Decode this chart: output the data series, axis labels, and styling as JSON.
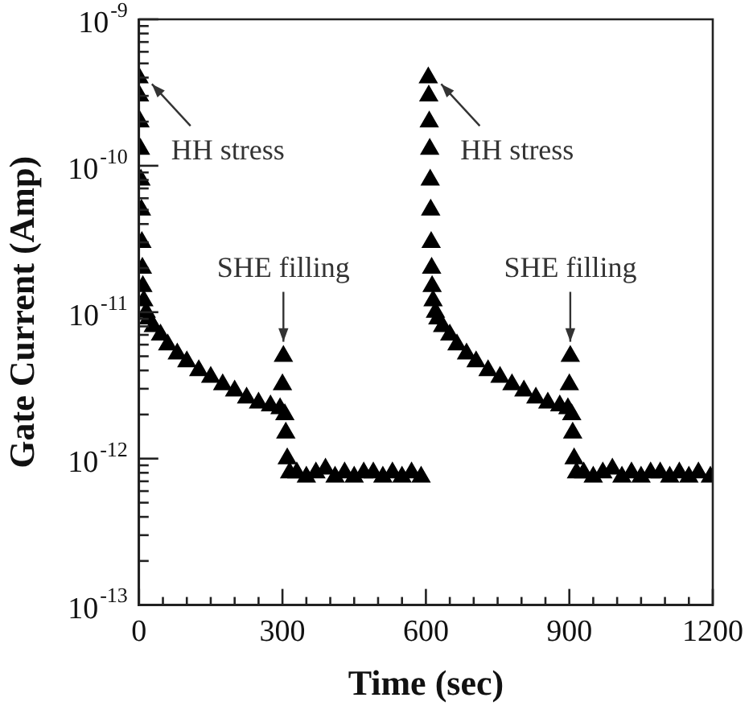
{
  "chart_data": {
    "type": "scatter",
    "xlabel": "Time (sec)",
    "ylabel": "Gate Current (Amp)",
    "log": "y",
    "grid": false,
    "legend": false,
    "marker": "triangle",
    "xlim": [
      0,
      1200
    ],
    "xticks": [
      0,
      {
        "value": 50,
        "label": null
      },
      {
        "value": 100,
        "label": null
      },
      {
        "value": 150,
        "label": null
      },
      {
        "value": 200,
        "label": null
      },
      {
        "value": 250,
        "label": null
      },
      300,
      {
        "value": 350,
        "label": null
      },
      {
        "value": 400,
        "label": null
      },
      {
        "value": 450,
        "label": null
      },
      {
        "value": 500,
        "label": null
      },
      {
        "value": 550,
        "label": null
      },
      600,
      {
        "value": 650,
        "label": null
      },
      {
        "value": 700,
        "label": null
      },
      {
        "value": 750,
        "label": null
      },
      {
        "value": 800,
        "label": null
      },
      {
        "value": 850,
        "label": null
      },
      900,
      {
        "value": 950,
        "label": null
      },
      {
        "value": 1000,
        "label": null
      },
      {
        "value": 1050,
        "label": null
      },
      {
        "value": 1100,
        "label": null
      },
      {
        "value": 1150,
        "label": null
      },
      1200
    ],
    "ylim": [
      1e-13,
      1e-09
    ],
    "yticks": [
      {
        "value": 1e-13,
        "label": "10$^{-13}$"
      },
      {
        "value": 2e-13,
        "label": null
      },
      {
        "value": 3e-13,
        "label": null
      },
      {
        "value": 4e-13,
        "label": null
      },
      {
        "value": 5e-13,
        "label": null
      },
      {
        "value": 6e-13,
        "label": null
      },
      {
        "value": 7e-13,
        "label": null
      },
      {
        "value": 8e-13,
        "label": null
      },
      {
        "value": 9e-13,
        "label": null
      },
      {
        "value": 1e-12,
        "label": "10$^{-12}$"
      },
      {
        "value": 2e-12,
        "label": null
      },
      {
        "value": 3e-12,
        "label": null
      },
      {
        "value": 4e-12,
        "label": null
      },
      {
        "value": 5e-12,
        "label": null
      },
      {
        "value": 6e-12,
        "label": null
      },
      {
        "value": 7e-12,
        "label": null
      },
      {
        "value": 8e-12,
        "label": null
      },
      {
        "value": 9e-12,
        "label": null
      },
      {
        "value": 1e-11,
        "label": "10$^{-11}$"
      },
      {
        "value": 2e-11,
        "label": null
      },
      {
        "value": 3e-11,
        "label": null
      },
      {
        "value": 4e-11,
        "label": null
      },
      {
        "value": 5e-11,
        "label": null
      },
      {
        "value": 6e-11,
        "label": null
      },
      {
        "value": 7e-11,
        "label": null
      },
      {
        "value": 8e-11,
        "label": null
      },
      {
        "value": 9e-11,
        "label": null
      },
      {
        "value": 1e-10,
        "label": "10$^{-10}$"
      },
      {
        "value": 2e-10,
        "label": null
      },
      {
        "value": 3e-10,
        "label": null
      },
      {
        "value": 4e-10,
        "label": null
      },
      {
        "value": 5e-10,
        "label": null
      },
      {
        "value": 6e-10,
        "label": null
      },
      {
        "value": 7e-10,
        "label": null
      },
      {
        "value": 8e-10,
        "label": null
      },
      {
        "value": 9e-10,
        "label": null
      },
      {
        "value": 1e-09,
        "label": "10$^{-9}$"
      }
    ],
    "series": [
      {
        "color": "#000000",
        "x": [
          0,
          1,
          2,
          3,
          4,
          5,
          6,
          7,
          8,
          10,
          15,
          20,
          30,
          45,
          60,
          80,
          100,
          125,
          150,
          175,
          200,
          225,
          250,
          275,
          295,
          300,
          302,
          305,
          307,
          310,
          315,
          330,
          350,
          370,
          390,
          410,
          430,
          450,
          470,
          490,
          510,
          530,
          550,
          570,
          590,
          605,
          606,
          607,
          608,
          609,
          610,
          611,
          612,
          613,
          615,
          620,
          625,
          635,
          650,
          665,
          685,
          705,
          730,
          755,
          780,
          805,
          830,
          855,
          880,
          897,
          900,
          902,
          905,
          907,
          910,
          915,
          930,
          950,
          970,
          990,
          1010,
          1030,
          1050,
          1070,
          1090,
          1110,
          1130,
          1150,
          1170,
          1195
        ],
        "values": [
          4e-10,
          3e-10,
          2e-10,
          1.3e-10,
          8e-11,
          5e-11,
          3e-11,
          2e-11,
          1.5e-11,
          1.2e-11,
          1e-11,
          9e-12,
          8e-12,
          7e-12,
          6e-12,
          5.2e-12,
          4.6e-12,
          4e-12,
          3.6e-12,
          3.2e-12,
          2.9e-12,
          2.6e-12,
          2.4e-12,
          2.3e-12,
          2.2e-12,
          3.2e-12,
          5e-12,
          2e-12,
          1.5e-12,
          1e-12,
          8e-13,
          8e-13,
          7.5e-13,
          8e-13,
          8.5e-13,
          7.5e-13,
          8e-13,
          7.5e-13,
          8e-13,
          8e-13,
          7.5e-13,
          8e-13,
          7.5e-13,
          8e-13,
          7.5e-13,
          4e-10,
          3e-10,
          2e-10,
          1.3e-10,
          8e-11,
          5e-11,
          3e-11,
          2e-11,
          1.5e-11,
          1.2e-11,
          1e-11,
          9e-12,
          8e-12,
          7e-12,
          6e-12,
          5.2e-12,
          4.6e-12,
          4e-12,
          3.6e-12,
          3.2e-12,
          2.9e-12,
          2.6e-12,
          2.4e-12,
          2.3e-12,
          2.2e-12,
          3.2e-12,
          5e-12,
          2e-12,
          1.5e-12,
          1e-12,
          8e-13,
          8e-13,
          7.5e-13,
          8e-13,
          8.5e-13,
          7.5e-13,
          8e-13,
          7.5e-13,
          8e-13,
          8e-13,
          7.5e-13,
          8e-13,
          7.5e-13,
          8e-13,
          7.5e-13
        ]
      }
    ],
    "annotations": [
      {
        "text": "HH stress",
        "x": 0,
        "y": 4e-10
      },
      {
        "text": "SHE filling",
        "x": 302,
        "y": 5e-12
      },
      {
        "text": "HH stress",
        "x": 605,
        "y": 4e-10
      },
      {
        "text": "SHE filling",
        "x": 902,
        "y": 5e-12
      }
    ]
  }
}
